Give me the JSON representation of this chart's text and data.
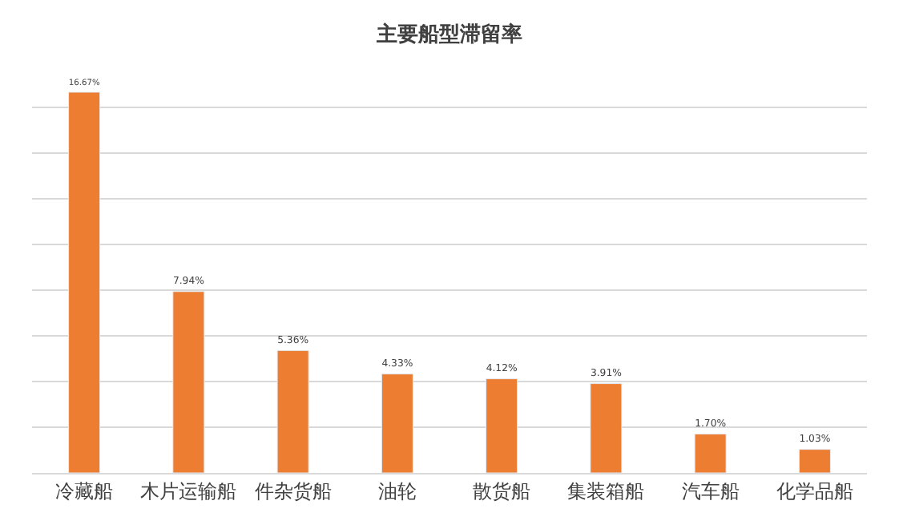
{
  "chart_data": {
    "type": "bar",
    "title": "主要船型滞留率",
    "categories": [
      "冷藏船",
      "木片运输船",
      "件杂货船",
      "油轮",
      "散货船",
      "集装箱船",
      "汽车船",
      "化学品船"
    ],
    "values": [
      16.67,
      7.94,
      5.36,
      4.33,
      4.12,
      3.91,
      1.7,
      1.03
    ],
    "value_labels": [
      "16.67%",
      "7.94%",
      "5.36%",
      "4.33%",
      "4.12%",
      "3.91%",
      "1.70%",
      "1.03%"
    ],
    "color": "#ed7d31",
    "grid": "y",
    "tick_labels": "x"
  }
}
